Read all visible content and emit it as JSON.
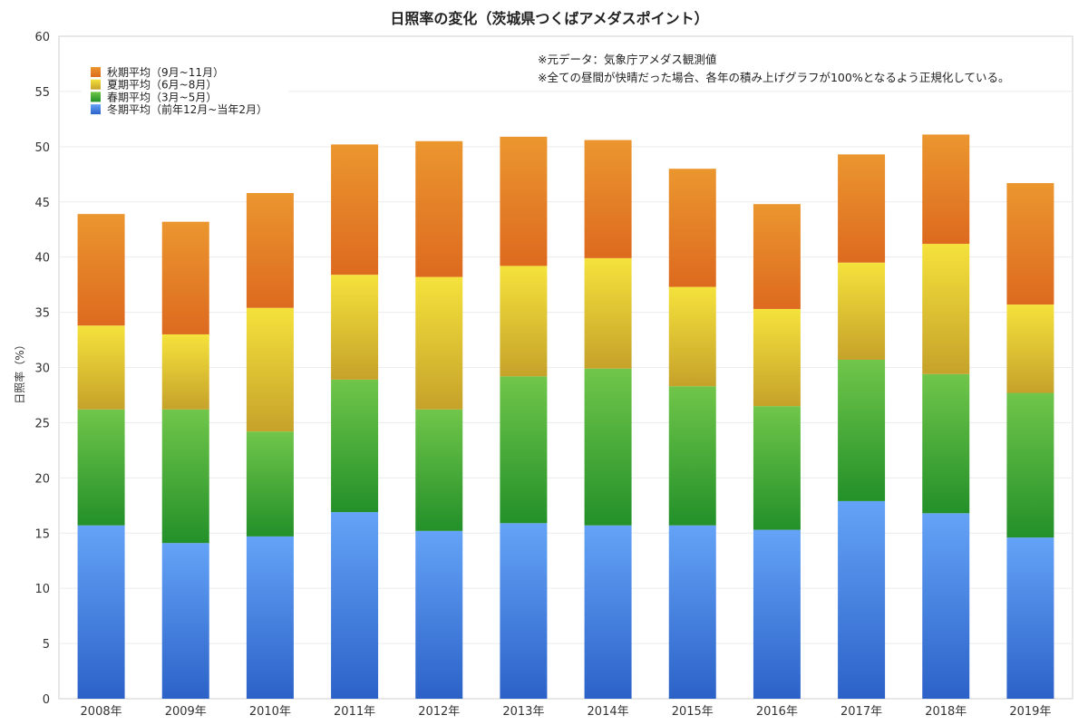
{
  "chart_data": {
    "type": "bar",
    "stacked": true,
    "title": "日照率の変化（茨城県つくばアメダスポイント）",
    "ylabel": "日照率（%）",
    "xlabel": "",
    "ylim": [
      0,
      60
    ],
    "yticks": [
      0,
      5,
      10,
      15,
      20,
      25,
      30,
      35,
      40,
      45,
      50,
      55,
      60
    ],
    "grid": true,
    "legend_position": "top-left",
    "categories": [
      "2008年",
      "2009年",
      "2010年",
      "2011年",
      "2012年",
      "2013年",
      "2014年",
      "2015年",
      "2016年",
      "2017年",
      "2018年",
      "2019年"
    ],
    "series": [
      {
        "name": "冬期平均（前年12月~当年2月）",
        "color_top": "#64a3f7",
        "color_bottom": "#2c62c8",
        "values": [
          15.7,
          14.1,
          14.7,
          16.9,
          15.2,
          15.9,
          15.7,
          15.7,
          15.3,
          17.9,
          16.8,
          14.6
        ]
      },
      {
        "name": "春期平均（3月~5月）",
        "color_top": "#70c64a",
        "color_bottom": "#239029",
        "values": [
          10.5,
          12.1,
          9.5,
          12.0,
          11.0,
          13.3,
          14.2,
          12.6,
          11.2,
          12.8,
          12.6,
          13.1
        ]
      },
      {
        "name": "夏期平均（6月~8月）",
        "color_top": "#f5e23c",
        "color_bottom": "#c6a22a",
        "values": [
          7.6,
          6.8,
          11.2,
          9.5,
          12.0,
          10.0,
          10.0,
          9.0,
          8.8,
          8.8,
          11.8,
          8.0
        ]
      },
      {
        "name": "秋期平均（9月~11月）",
        "color_top": "#eb962f",
        "color_bottom": "#dd6a1f",
        "values": [
          10.1,
          10.2,
          10.4,
          11.8,
          12.3,
          11.7,
          10.7,
          10.7,
          9.5,
          9.8,
          9.9,
          11.0
        ]
      }
    ],
    "legend_order": [
      "秋期平均（9月~11月）",
      "夏期平均（6月~8月）",
      "春期平均（3月~5月）",
      "冬期平均（前年12月~当年2月）"
    ],
    "annotations": [
      "※元データ：気象庁アメダス観測値",
      "※全ての昼間が快晴だった場合、各年の積み上げグラフが100%となるよう正規化している。"
    ]
  }
}
